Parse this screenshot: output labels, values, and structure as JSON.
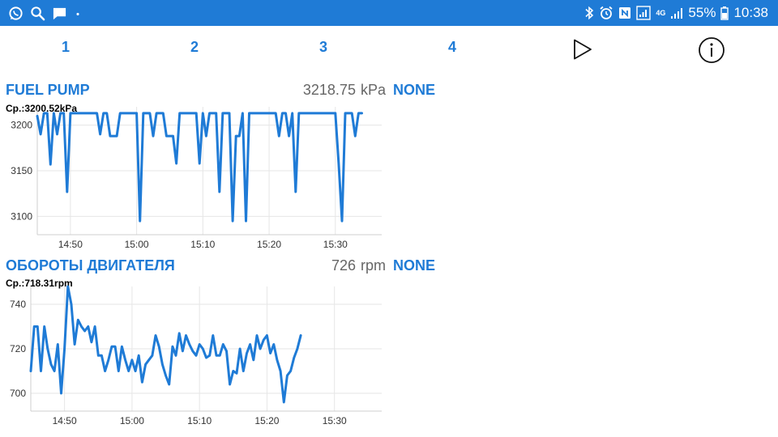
{
  "status_bar": {
    "left_icons": [
      "whatsapp-icon",
      "search-icon",
      "message-icon",
      "dot-icon"
    ],
    "right_icons": [
      "bluetooth-icon",
      "alarm-icon",
      "nfc-icon",
      "signal-icon",
      "4g-icon",
      "signal-icon",
      "battery-icon"
    ],
    "network": "4G",
    "battery": "55%",
    "time": "10:38",
    "color": "#1f7bd6"
  },
  "tabs": [
    {
      "label": "1"
    },
    {
      "label": "2"
    },
    {
      "label": "3"
    },
    {
      "label": "4"
    }
  ],
  "toolbar_icons": [
    "play-icon",
    "info-icon"
  ],
  "accent_color": "#1f7bd6",
  "panels": [
    {
      "title": "FUEL PUMP",
      "value": "3218.75",
      "unit": "kPa",
      "mode": "NONE",
      "average": "Ср.:3200.52kPa"
    },
    {
      "title": "ОБОРОТЫ ДВИГАТЕЛЯ",
      "value": "726",
      "unit": "rpm",
      "mode": "NONE",
      "average": "Ср.:718.31rpm"
    }
  ],
  "chart_data": [
    {
      "type": "line",
      "xlim": [
        "14:45",
        "15:37"
      ],
      "x_ticks": [
        "14:50",
        "15:00",
        "15:10",
        "15:20",
        "15:30"
      ],
      "ylim": [
        3080,
        3220
      ],
      "y_ticks": [
        "3100",
        "3150",
        "3200"
      ],
      "grid": true,
      "series": [
        {
          "color": "#1f7bd6",
          "points": [
            [
              "14:45:00",
              3210
            ],
            [
              "14:45:30",
              3190
            ],
            [
              "14:46:00",
              3213
            ],
            [
              "14:46:30",
              3213
            ],
            [
              "14:47:00",
              3157
            ],
            [
              "14:47:30",
              3213
            ],
            [
              "14:48:00",
              3190
            ],
            [
              "14:48:30",
              3213
            ],
            [
              "14:49:00",
              3213
            ],
            [
              "14:49:30",
              3127
            ],
            [
              "14:50:00",
              3213
            ],
            [
              "14:51:00",
              3213
            ],
            [
              "14:52:00",
              3213
            ],
            [
              "14:53:00",
              3213
            ],
            [
              "14:54:00",
              3213
            ],
            [
              "14:54:30",
              3190
            ],
            [
              "14:55:00",
              3213
            ],
            [
              "14:55:30",
              3213
            ],
            [
              "14:56:00",
              3188
            ],
            [
              "14:57:00",
              3188
            ],
            [
              "14:57:30",
              3213
            ],
            [
              "14:58:00",
              3213
            ],
            [
              "14:59:00",
              3213
            ],
            [
              "15:00:00",
              3213
            ],
            [
              "15:00:30",
              3095
            ],
            [
              "15:01:00",
              3213
            ],
            [
              "15:02:00",
              3213
            ],
            [
              "15:02:30",
              3188
            ],
            [
              "15:03:00",
              3213
            ],
            [
              "15:04:00",
              3213
            ],
            [
              "15:04:30",
              3188
            ],
            [
              "15:05:30",
              3188
            ],
            [
              "15:06:00",
              3158
            ],
            [
              "15:06:30",
              3213
            ],
            [
              "15:07:30",
              3213
            ],
            [
              "15:08:30",
              3213
            ],
            [
              "15:09:00",
              3213
            ],
            [
              "15:09:30",
              3158
            ],
            [
              "15:10:00",
              3213
            ],
            [
              "15:10:30",
              3188
            ],
            [
              "15:11:00",
              3213
            ],
            [
              "15:12:00",
              3213
            ],
            [
              "15:12:30",
              3127
            ],
            [
              "15:13:00",
              3213
            ],
            [
              "15:14:00",
              3213
            ],
            [
              "15:14:30",
              3095
            ],
            [
              "15:15:00",
              3188
            ],
            [
              "15:15:30",
              3188
            ],
            [
              "15:16:00",
              3213
            ],
            [
              "15:16:30",
              3095
            ],
            [
              "15:17:00",
              3213
            ],
            [
              "15:18:00",
              3213
            ],
            [
              "15:19:00",
              3213
            ],
            [
              "15:20:00",
              3213
            ],
            [
              "15:21:00",
              3213
            ],
            [
              "15:21:30",
              3188
            ],
            [
              "15:22:00",
              3213
            ],
            [
              "15:22:30",
              3213
            ],
            [
              "15:23:00",
              3188
            ],
            [
              "15:23:30",
              3213
            ],
            [
              "15:24:00",
              3127
            ],
            [
              "15:24:30",
              3213
            ],
            [
              "15:25:30",
              3213
            ],
            [
              "15:26:30",
              3213
            ],
            [
              "15:27:30",
              3213
            ],
            [
              "15:28:30",
              3213
            ],
            [
              "15:29:30",
              3213
            ],
            [
              "15:30:00",
              3213
            ],
            [
              "15:30:30",
              3158
            ],
            [
              "15:31:00",
              3095
            ],
            [
              "15:31:30",
              3213
            ],
            [
              "15:32:30",
              3213
            ],
            [
              "15:33:00",
              3188
            ],
            [
              "15:33:30",
              3213
            ],
            [
              "15:34:00",
              3213
            ]
          ]
        }
      ]
    },
    {
      "type": "line",
      "xlim": [
        "14:45",
        "15:37"
      ],
      "x_ticks": [
        "14:50",
        "15:00",
        "15:10",
        "15:20",
        "15:30"
      ],
      "ylim": [
        692,
        748
      ],
      "y_ticks": [
        "700",
        "720",
        "740"
      ],
      "grid": true,
      "series": [
        {
          "color": "#1f7bd6",
          "points": [
            [
              "14:45:00",
              710
            ],
            [
              "14:45:30",
              730
            ],
            [
              "14:46:00",
              730
            ],
            [
              "14:46:30",
              710
            ],
            [
              "14:47:00",
              730
            ],
            [
              "14:47:30",
              720
            ],
            [
              "14:48:00",
              713
            ],
            [
              "14:48:30",
              710
            ],
            [
              "14:49:00",
              722
            ],
            [
              "14:49:30",
              700
            ],
            [
              "14:50:00",
              720
            ],
            [
              "14:50:30",
              748
            ],
            [
              "14:51:00",
              740
            ],
            [
              "14:51:30",
              722
            ],
            [
              "14:52:00",
              733
            ],
            [
              "14:52:30",
              730
            ],
            [
              "14:53:00",
              728
            ],
            [
              "14:53:30",
              730
            ],
            [
              "14:54:00",
              723
            ],
            [
              "14:54:30",
              730
            ],
            [
              "14:55:00",
              717
            ],
            [
              "14:55:30",
              717
            ],
            [
              "14:56:00",
              710
            ],
            [
              "14:56:30",
              715
            ],
            [
              "14:57:00",
              721
            ],
            [
              "14:57:30",
              721
            ],
            [
              "14:58:00",
              710
            ],
            [
              "14:58:30",
              721
            ],
            [
              "14:59:00",
              715
            ],
            [
              "14:59:30",
              710
            ],
            [
              "15:00:00",
              715
            ],
            [
              "15:00:30",
              710
            ],
            [
              "15:01:00",
              717
            ],
            [
              "15:01:30",
              705
            ],
            [
              "15:02:00",
              713
            ],
            [
              "15:02:30",
              715
            ],
            [
              "15:03:00",
              717
            ],
            [
              "15:03:30",
              726
            ],
            [
              "15:04:00",
              721
            ],
            [
              "15:04:30",
              713
            ],
            [
              "15:05:00",
              708
            ],
            [
              "15:05:30",
              704
            ],
            [
              "15:06:00",
              721
            ],
            [
              "15:06:30",
              717
            ],
            [
              "15:07:00",
              727
            ],
            [
              "15:07:30",
              719
            ],
            [
              "15:08:00",
              726
            ],
            [
              "15:08:30",
              722
            ],
            [
              "15:09:00",
              719
            ],
            [
              "15:09:30",
              717
            ],
            [
              "15:10:00",
              722
            ],
            [
              "15:10:30",
              720
            ],
            [
              "15:11:00",
              716
            ],
            [
              "15:11:30",
              717
            ],
            [
              "15:12:00",
              726
            ],
            [
              "15:12:30",
              717
            ],
            [
              "15:13:00",
              717
            ],
            [
              "15:13:30",
              722
            ],
            [
              "15:14:00",
              719
            ],
            [
              "15:14:30",
              704
            ],
            [
              "15:15:00",
              710
            ],
            [
              "15:15:30",
              709
            ],
            [
              "15:16:00",
              720
            ],
            [
              "15:16:30",
              710
            ],
            [
              "15:17:00",
              718
            ],
            [
              "15:17:30",
              722
            ],
            [
              "15:18:00",
              715
            ],
            [
              "15:18:30",
              726
            ],
            [
              "15:19:00",
              720
            ],
            [
              "15:19:30",
              724
            ],
            [
              "15:20:00",
              726
            ],
            [
              "15:20:30",
              718
            ],
            [
              "15:21:00",
              722
            ],
            [
              "15:21:30",
              715
            ],
            [
              "15:22:00",
              710
            ],
            [
              "15:22:30",
              696
            ],
            [
              "15:23:00",
              708
            ],
            [
              "15:23:30",
              710
            ],
            [
              "15:24:00",
              716
            ],
            [
              "15:24:30",
              720
            ],
            [
              "15:25:00",
              726
            ]
          ]
        }
      ]
    }
  ]
}
